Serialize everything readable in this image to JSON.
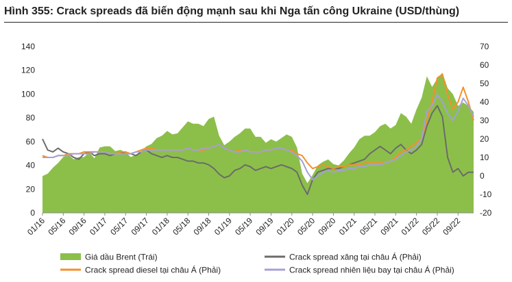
{
  "figure": {
    "title": "Hình 355: Crack spreads đã biến động mạnh sau khi Nga tấn công Ukraine (USD/thùng)"
  },
  "chart_data": {
    "type": "line",
    "title": "Hình 355: Crack spreads đã biến động mạnh sau khi Nga tấn công Ukraine (USD/thùng)",
    "x_range": [
      "2016-01",
      "2022-12"
    ],
    "x_ticks": [
      "01/16",
      "05/16",
      "09/16",
      "01/17",
      "05/17",
      "09/17",
      "01/18",
      "05/18",
      "09/18",
      "01/19",
      "05/19",
      "09/19",
      "01/20",
      "05/20",
      "09/20",
      "01/21",
      "05/21",
      "09/21",
      "01/22",
      "05/22",
      "09/22"
    ],
    "y_left": {
      "ticks": [
        0,
        20,
        40,
        60,
        80,
        100,
        120,
        140
      ],
      "range": [
        0,
        140
      ]
    },
    "y_right": {
      "ticks": [
        -20,
        -10,
        0,
        10,
        20,
        30,
        40,
        50,
        60,
        70
      ],
      "range": [
        -20,
        70
      ]
    },
    "grid": false,
    "legend_position": "bottom",
    "months": [
      "2016-01",
      "2016-02",
      "2016-03",
      "2016-04",
      "2016-05",
      "2016-06",
      "2016-07",
      "2016-08",
      "2016-09",
      "2016-10",
      "2016-11",
      "2016-12",
      "2017-01",
      "2017-02",
      "2017-03",
      "2017-04",
      "2017-05",
      "2017-06",
      "2017-07",
      "2017-08",
      "2017-09",
      "2017-10",
      "2017-11",
      "2017-12",
      "2018-01",
      "2018-02",
      "2018-03",
      "2018-04",
      "2018-05",
      "2018-06",
      "2018-07",
      "2018-08",
      "2018-09",
      "2018-10",
      "2018-11",
      "2018-12",
      "2019-01",
      "2019-02",
      "2019-03",
      "2019-04",
      "2019-05",
      "2019-06",
      "2019-07",
      "2019-08",
      "2019-09",
      "2019-10",
      "2019-11",
      "2019-12",
      "2020-01",
      "2020-02",
      "2020-03",
      "2020-04",
      "2020-05",
      "2020-06",
      "2020-07",
      "2020-08",
      "2020-09",
      "2020-10",
      "2020-11",
      "2020-12",
      "2021-01",
      "2021-02",
      "2021-03",
      "2021-04",
      "2021-05",
      "2021-06",
      "2021-07",
      "2021-08",
      "2021-09",
      "2021-10",
      "2021-11",
      "2021-12",
      "2022-01",
      "2022-02",
      "2022-03",
      "2022-04",
      "2022-05",
      "2022-06",
      "2022-07",
      "2022-08",
      "2022-09",
      "2022-10",
      "2022-11",
      "2022-12"
    ],
    "series": [
      {
        "name": "Giá dầu Brent (Trái)",
        "type": "area",
        "axis": "left",
        "color": "#8cbf4a",
        "values": [
          31,
          33,
          38,
          42,
          47,
          49,
          45,
          47,
          47,
          51,
          46,
          55,
          56,
          56,
          52,
          53,
          51,
          47,
          49,
          52,
          56,
          58,
          63,
          65,
          69,
          66,
          67,
          72,
          77,
          75,
          75,
          73,
          79,
          81,
          65,
          57,
          60,
          64,
          67,
          71,
          71,
          64,
          64,
          59,
          62,
          60,
          63,
          66,
          64,
          55,
          33,
          25,
          32,
          40,
          43,
          45,
          41,
          40,
          44,
          50,
          55,
          62,
          65,
          65,
          68,
          73,
          75,
          71,
          74,
          84,
          81,
          75,
          87,
          97,
          115,
          106,
          113,
          118,
          105,
          100,
          90,
          93,
          90,
          85
        ]
      },
      {
        "name": "Crack spread xăng tại châu Á (Phải)",
        "type": "line",
        "axis": "right",
        "color": "#6b6b6b",
        "values": [
          20,
          14,
          13,
          15,
          13,
          12,
          10,
          9,
          12,
          13,
          11,
          12,
          12,
          11,
          12,
          13,
          12,
          12,
          11,
          13,
          14,
          12,
          11,
          10,
          11,
          10,
          10,
          9,
          8,
          8,
          7,
          7,
          6,
          4,
          1,
          -1,
          0,
          3,
          4,
          6,
          5,
          3,
          4,
          5,
          4,
          5,
          6,
          5,
          4,
          2,
          -5,
          -10,
          -2,
          2,
          3,
          4,
          4,
          4,
          5,
          6,
          7,
          8,
          9,
          12,
          14,
          16,
          14,
          12,
          15,
          17,
          14,
          12,
          14,
          17,
          27,
          34,
          38,
          32,
          10,
          2,
          4,
          0,
          2,
          2
        ]
      },
      {
        "name": "Crack spread diesel tại châu Á (Phải)",
        "type": "line",
        "axis": "right",
        "color": "#f4902a",
        "values": [
          11,
          10,
          10,
          11,
          11,
          12,
          12,
          12,
          13,
          13,
          13,
          13,
          13,
          12,
          12,
          13,
          13,
          12,
          13,
          14,
          15,
          15,
          14,
          14,
          14,
          14,
          14,
          14,
          15,
          14,
          14,
          14,
          15,
          16,
          17,
          15,
          14,
          13,
          14,
          14,
          13,
          13,
          13,
          14,
          14,
          15,
          15,
          14,
          14,
          12,
          11,
          7,
          4,
          5,
          6,
          5,
          4,
          5,
          5,
          6,
          6,
          6,
          7,
          7,
          7,
          7,
          7,
          8,
          10,
          13,
          14,
          16,
          18,
          20,
          30,
          40,
          53,
          55,
          44,
          36,
          40,
          48,
          40,
          30
        ]
      },
      {
        "name": "Crack spread nhiên liệu bay tại châu Á (Phải)",
        "type": "line",
        "axis": "right",
        "color": "#a4a0d6",
        "values": [
          10,
          10,
          10,
          11,
          11,
          11,
          12,
          12,
          12,
          12,
          13,
          13,
          13,
          12,
          12,
          12,
          12,
          12,
          13,
          13,
          14,
          14,
          14,
          14,
          14,
          14,
          14,
          14,
          15,
          14,
          14,
          15,
          15,
          16,
          17,
          15,
          14,
          13,
          13,
          14,
          13,
          13,
          13,
          14,
          14,
          15,
          15,
          14,
          13,
          11,
          8,
          2,
          -2,
          0,
          2,
          3,
          2,
          3,
          3,
          4,
          4,
          5,
          5,
          6,
          6,
          6,
          7,
          8,
          9,
          11,
          13,
          14,
          16,
          20,
          35,
          38,
          44,
          40,
          34,
          30,
          35,
          42,
          38,
          32
        ]
      }
    ]
  },
  "legend": {
    "brent": "Giá dầu Brent (Trái)",
    "gasoline": "Crack spread xăng tại châu Á (Phải)",
    "diesel": "Crack spread diesel tại châu Á (Phải)",
    "jet": "Crack spread nhiên liệu bay tại châu Á (Phải)"
  }
}
